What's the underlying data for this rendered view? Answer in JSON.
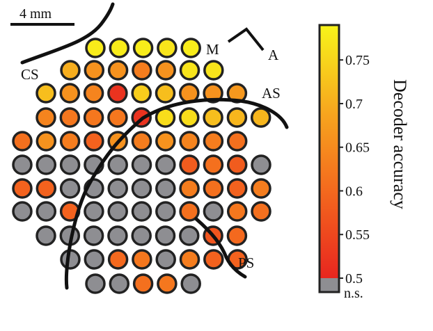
{
  "scale_bar": {
    "label": "4 mm"
  },
  "labels": {
    "cs": "CS",
    "m": "M",
    "a": "A",
    "as": "AS",
    "ps": "PS"
  },
  "colorbar": {
    "title": "Decoder accuracy",
    "ticks": [
      "0.75",
      "0.7",
      "0.65",
      "0.6",
      "0.55",
      "0.5"
    ],
    "ns_label": "n.s.",
    "range": [
      0.5,
      0.79
    ]
  },
  "colors": {
    "ns": "#8e8e92",
    "high": "#f7f11a",
    "mid": "#f79a1e",
    "low": "#e8261f",
    "outline": "#222222"
  },
  "electrode_grid": {
    "legend": "values: decoder accuracy per electrode; null = n.s.",
    "rows": [
      [
        0.78,
        0.78,
        0.78,
        0.77,
        0.78
      ],
      [
        0.7,
        0.66,
        0.66,
        0.63,
        0.66,
        0.77,
        0.77
      ],
      [
        0.72,
        0.66,
        0.64,
        0.52,
        0.74,
        0.72,
        0.66,
        0.66,
        0.67
      ],
      [
        0.64,
        0.62,
        0.62,
        0.62,
        0.52,
        0.76,
        0.76,
        0.72,
        0.71,
        0.71
      ],
      [
        0.61,
        0.66,
        0.63,
        0.59,
        0.66,
        0.63,
        0.66,
        0.64,
        0.63,
        0.61
      ],
      [
        null,
        null,
        null,
        null,
        null,
        null,
        null,
        0.58,
        0.61,
        0.58,
        null
      ],
      [
        0.59,
        0.59,
        null,
        null,
        null,
        null,
        null,
        0.63,
        0.61,
        0.59,
        0.63
      ],
      [
        null,
        null,
        0.59,
        null,
        null,
        null,
        null,
        0.61,
        null,
        0.62,
        0.61
      ],
      [
        null,
        null,
        null,
        null,
        null,
        null,
        null,
        0.57,
        0.6
      ],
      [
        null,
        null,
        0.6,
        0.62,
        null,
        0.63,
        0.59,
        0.59
      ],
      [
        null,
        null,
        0.61,
        0.62,
        null
      ]
    ]
  }
}
